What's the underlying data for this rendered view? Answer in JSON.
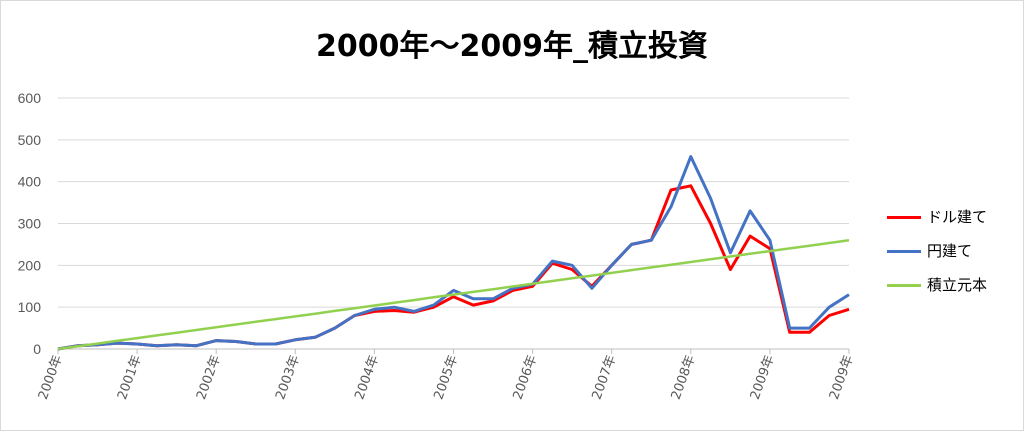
{
  "chart_data": {
    "type": "line",
    "title": "2000年～2009年_積立投資",
    "xlabel": "",
    "ylabel": "",
    "ylim": [
      0,
      600
    ],
    "yticks": [
      0,
      100,
      200,
      300,
      400,
      500,
      600
    ],
    "x_tick_labels": [
      "2000年",
      "2001年",
      "2002年",
      "2003年",
      "2004年",
      "2005年",
      "2006年",
      "2007年",
      "2008年",
      "2009年",
      "2009年"
    ],
    "grid": true,
    "legend_position": "right",
    "x": [
      0,
      0.25,
      0.5,
      0.75,
      1,
      1.25,
      1.5,
      1.75,
      2,
      2.25,
      2.5,
      2.75,
      3,
      3.25,
      3.5,
      3.75,
      4,
      4.25,
      4.5,
      4.75,
      5,
      5.25,
      5.5,
      5.75,
      6,
      6.25,
      6.5,
      6.75,
      7,
      7.25,
      7.5,
      7.75,
      8,
      8.25,
      8.5,
      8.75,
      9,
      9.25,
      9.5,
      9.75,
      10
    ],
    "series": [
      {
        "name": "ドル建て",
        "color": "#ff0000",
        "values": [
          0,
          8,
          10,
          14,
          12,
          8,
          10,
          8,
          20,
          18,
          12,
          12,
          22,
          28,
          50,
          80,
          90,
          92,
          88,
          100,
          125,
          105,
          115,
          140,
          150,
          205,
          190,
          150,
          200,
          250,
          260,
          380,
          390,
          300,
          190,
          270,
          240,
          40,
          40,
          80,
          95
        ]
      },
      {
        "name": "円建て",
        "color": "#4472c4",
        "values": [
          0,
          8,
          10,
          14,
          12,
          8,
          10,
          8,
          20,
          18,
          12,
          12,
          22,
          28,
          50,
          80,
          95,
          100,
          90,
          105,
          140,
          120,
          120,
          145,
          155,
          210,
          200,
          145,
          200,
          250,
          260,
          340,
          460,
          360,
          230,
          330,
          260,
          50,
          50,
          100,
          130
        ]
      },
      {
        "name": "積立元本",
        "color": "#92d050",
        "values": [
          0,
          6.5,
          13,
          19.5,
          26,
          32.5,
          39,
          45.5,
          52,
          58.5,
          65,
          71.5,
          78,
          84.5,
          91,
          97.5,
          104,
          110.5,
          117,
          123.5,
          130,
          136.5,
          143,
          149.5,
          156,
          162.5,
          169,
          175.5,
          182,
          188.5,
          195,
          201.5,
          208,
          214.5,
          221,
          227.5,
          234,
          240.5,
          247,
          253.5,
          260
        ]
      }
    ]
  }
}
